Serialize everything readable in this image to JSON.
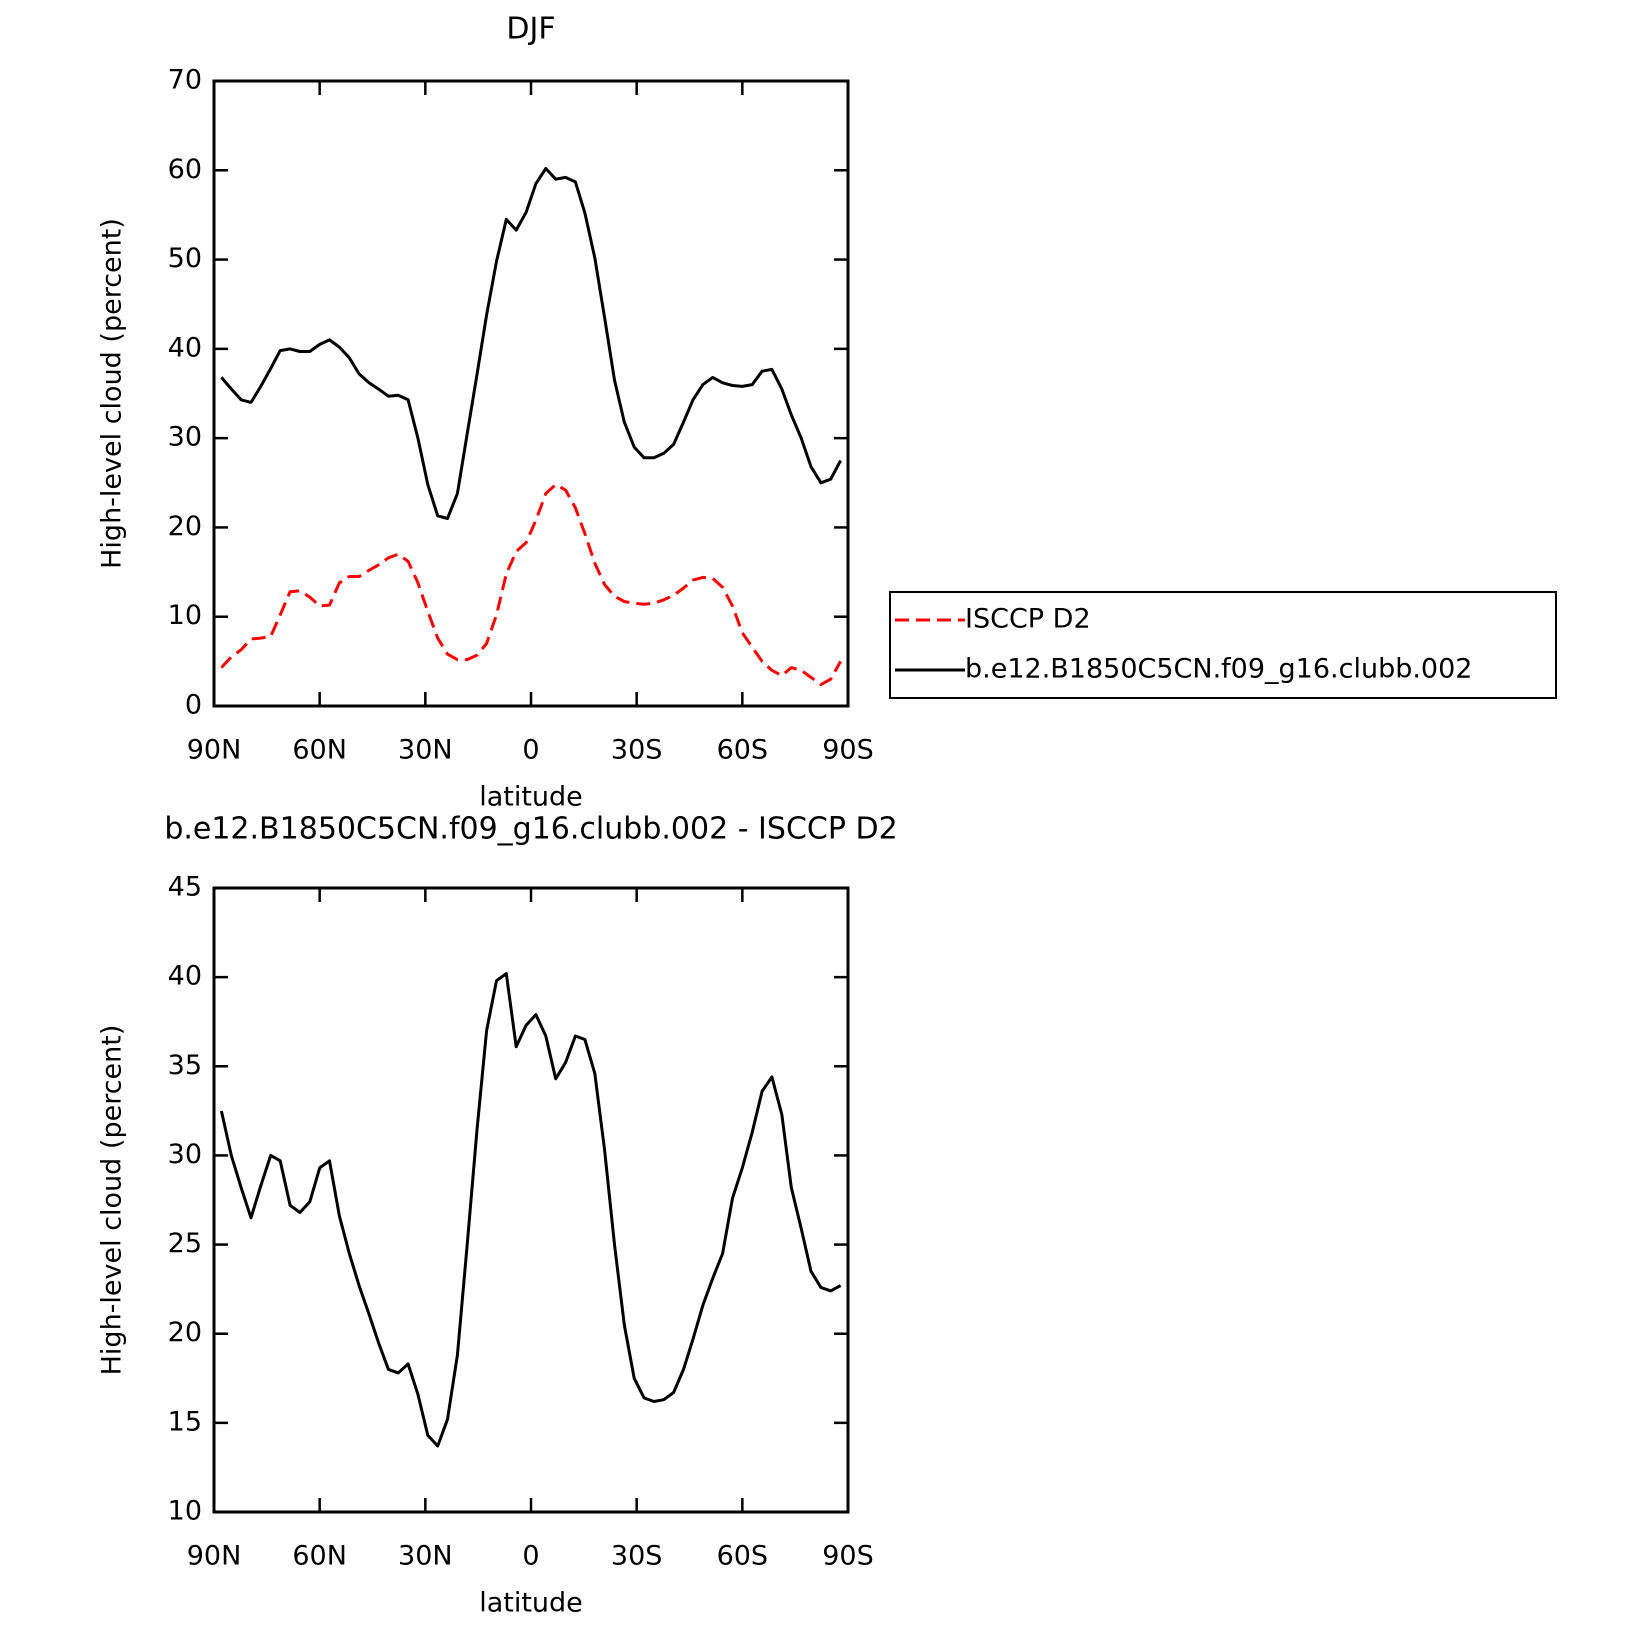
{
  "chart_data": [
    {
      "type": "line",
      "title": "DJF",
      "xlabel": "latitude",
      "ylabel": "High-level cloud (percent)",
      "x": [
        87.9,
        85.1,
        82.3,
        79.5,
        76.7,
        73.9,
        71.2,
        68.4,
        65.6,
        62.8,
        60.0,
        57.2,
        54.4,
        51.6,
        48.8,
        46.0,
        43.3,
        40.5,
        37.7,
        34.9,
        32.1,
        29.3,
        26.5,
        23.7,
        20.9,
        18.1,
        15.3,
        12.6,
        9.8,
        7.0,
        4.2,
        1.4,
        -1.4,
        -4.2,
        -7.0,
        -9.8,
        -12.6,
        -15.3,
        -18.1,
        -20.9,
        -23.7,
        -26.5,
        -29.3,
        -32.1,
        -34.9,
        -37.7,
        -40.5,
        -43.3,
        -46.0,
        -48.8,
        -51.6,
        -54.4,
        -57.2,
        -60.0,
        -62.8,
        -65.6,
        -68.4,
        -71.2,
        -73.9,
        -76.7,
        -79.5,
        -82.3,
        -85.1,
        -87.9
      ],
      "series": [
        {
          "name": "ISCCP D2",
          "color": "#ff0000",
          "style": "dashed",
          "values": [
            4.3,
            5.5,
            6.3,
            7.5,
            7.6,
            7.8,
            10.2,
            12.8,
            12.9,
            12.2,
            11.2,
            11.3,
            13.8,
            14.5,
            14.5,
            15.2,
            15.8,
            16.6,
            17.0,
            16.2,
            13.8,
            10.6,
            7.6,
            5.8,
            5.2,
            5.2,
            5.7,
            7.0,
            10.2,
            14.8,
            17.3,
            18.3,
            20.8,
            23.8,
            24.8,
            24.2,
            22.2,
            19.3,
            16.0,
            13.6,
            12.3,
            11.7,
            11.5,
            11.4,
            11.5,
            11.9,
            12.4,
            13.2,
            14.1,
            14.4,
            14.3,
            13.3,
            11.2,
            8.2,
            6.6,
            5.0,
            4.0,
            3.4,
            4.3,
            4.0,
            3.2,
            2.4,
            3.0,
            5.0
          ]
        },
        {
          "name": "b.e12.B1850C5CN.f09_g16.clubb.002",
          "color": "#000000",
          "style": "solid",
          "values": [
            36.8,
            35.5,
            34.3,
            34.0,
            35.8,
            37.8,
            39.8,
            40.0,
            39.7,
            39.7,
            40.5,
            41.0,
            40.2,
            39.0,
            37.2,
            36.2,
            35.5,
            34.7,
            34.8,
            34.3,
            30.0,
            24.8,
            21.3,
            21.0,
            23.8,
            30.5,
            37.2,
            43.8,
            49.8,
            54.5,
            53.3,
            55.3,
            58.5,
            60.2,
            59.0,
            59.2,
            58.7,
            55.2,
            50.2,
            43.5,
            36.5,
            31.8,
            29.0,
            27.8,
            27.8,
            28.3,
            29.3,
            31.8,
            34.3,
            36.0,
            36.8,
            36.2,
            35.9,
            35.8,
            36.0,
            37.5,
            37.7,
            35.5,
            32.6,
            30.0,
            26.8,
            25.0,
            25.4,
            27.5
          ]
        }
      ],
      "xlim": [
        90,
        -90
      ],
      "xticks": [
        {
          "value": 90,
          "label": "90N"
        },
        {
          "value": 60,
          "label": "60N"
        },
        {
          "value": 30,
          "label": "30N"
        },
        0,
        {
          "value": -30,
          "label": "30S"
        },
        {
          "value": -60,
          "label": "60S"
        },
        {
          "value": -90,
          "label": "90S"
        }
      ],
      "ylim": [
        0,
        70
      ],
      "yticks": [
        0,
        10,
        20,
        30,
        40,
        50,
        60,
        70
      ],
      "legend": "outside-right"
    },
    {
      "type": "line",
      "title": "b.e12.B1850C5CN.f09_g16.clubb.002 - ISCCP D2",
      "xlabel": "latitude",
      "ylabel": "High-level cloud (percent)",
      "x": [
        87.9,
        85.1,
        82.3,
        79.5,
        76.7,
        73.9,
        71.2,
        68.4,
        65.6,
        62.8,
        60.0,
        57.2,
        54.4,
        51.6,
        48.8,
        46.0,
        43.3,
        40.5,
        37.7,
        34.9,
        32.1,
        29.3,
        26.5,
        23.7,
        20.9,
        18.1,
        15.3,
        12.6,
        9.8,
        7.0,
        4.2,
        1.4,
        -1.4,
        -4.2,
        -7.0,
        -9.8,
        -12.6,
        -15.3,
        -18.1,
        -20.9,
        -23.7,
        -26.5,
        -29.3,
        -32.1,
        -34.9,
        -37.7,
        -40.5,
        -43.3,
        -46.0,
        -48.8,
        -51.6,
        -54.4,
        -57.2,
        -60.0,
        -62.8,
        -65.6,
        -68.4,
        -71.2,
        -73.9,
        -76.7,
        -79.5,
        -82.3,
        -85.1,
        -87.9
      ],
      "series": [
        {
          "color": "#000000",
          "style": "solid",
          "values": [
            32.5,
            30.0,
            28.2,
            26.5,
            28.3,
            30.0,
            29.7,
            27.2,
            26.8,
            27.4,
            29.3,
            29.7,
            26.6,
            24.5,
            22.7,
            21.1,
            19.5,
            18.0,
            17.8,
            18.3,
            16.6,
            14.3,
            13.7,
            15.2,
            18.8,
            25.0,
            31.5,
            37.0,
            39.8,
            40.2,
            36.1,
            37.3,
            37.9,
            36.7,
            34.3,
            35.2,
            36.7,
            36.5,
            34.6,
            30.3,
            25.0,
            20.5,
            17.5,
            16.4,
            16.2,
            16.3,
            16.7,
            18.0,
            19.7,
            21.6,
            23.1,
            24.5,
            27.6,
            29.3,
            31.3,
            33.6,
            34.4,
            32.3,
            28.2,
            25.9,
            23.5,
            22.6,
            22.4,
            22.7
          ]
        }
      ],
      "xlim": [
        90,
        -90
      ],
      "xticks": [
        {
          "value": 90,
          "label": "90N"
        },
        {
          "value": 60,
          "label": "60N"
        },
        {
          "value": 30,
          "label": "30N"
        },
        0,
        {
          "value": -30,
          "label": "30S"
        },
        {
          "value": -60,
          "label": "60S"
        },
        {
          "value": -90,
          "label": "90S"
        }
      ],
      "ylim": [
        10,
        45
      ],
      "yticks": [
        10,
        15,
        20,
        25,
        30,
        35,
        40,
        45
      ]
    }
  ]
}
